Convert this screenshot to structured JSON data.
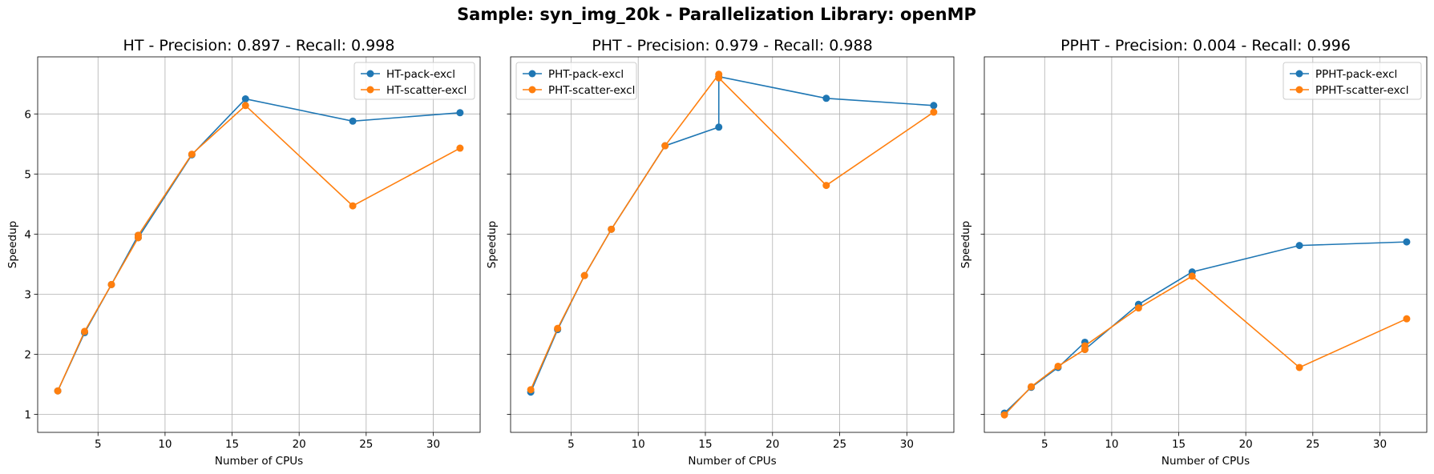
{
  "suptitle": "Sample: syn_img_20k - Parallelization Library: openMP",
  "colors": {
    "pack": "#1f77b4",
    "scatter": "#ff7f0e",
    "grid": "#b0b0b0"
  },
  "chart_data": [
    {
      "type": "line",
      "title": "HT - Precision: 0.897 - Recall: 0.998",
      "xlabel": "Number of CPUs",
      "ylabel": "Speedup",
      "xlim": [
        0.5,
        33.5
      ],
      "ylim": [
        0.7,
        6.95
      ],
      "xticks": [
        5,
        10,
        15,
        20,
        25,
        30
      ],
      "yticks": [
        1,
        2,
        3,
        4,
        5,
        6
      ],
      "show_ytick_labels": true,
      "grid": true,
      "legend": "top-right",
      "series": [
        {
          "name": "HT-pack-excl",
          "color": "pack",
          "x": [
            2,
            4,
            6,
            8,
            8,
            12,
            16,
            24,
            32
          ],
          "y": [
            1.39,
            2.36,
            3.16,
            3.98,
            3.94,
            5.32,
            6.25,
            5.88,
            6.02
          ]
        },
        {
          "name": "HT-scatter-excl",
          "color": "scatter",
          "x": [
            2,
            4,
            6,
            8,
            8,
            12,
            16,
            24,
            32
          ],
          "y": [
            1.39,
            2.38,
            3.16,
            3.94,
            3.98,
            5.33,
            6.14,
            4.47,
            5.43
          ]
        }
      ]
    },
    {
      "type": "line",
      "title": "PHT - Precision: 0.979 - Recall: 0.988",
      "xlabel": "Number of CPUs",
      "ylabel": "Speedup",
      "xlim": [
        0.5,
        33.5
      ],
      "ylim": [
        0.7,
        6.95
      ],
      "xticks": [
        5,
        10,
        15,
        20,
        25,
        30
      ],
      "yticks": [
        1,
        2,
        3,
        4,
        5,
        6
      ],
      "show_ytick_labels": false,
      "grid": true,
      "legend": "top-left",
      "series": [
        {
          "name": "PHT-pack-excl",
          "color": "pack",
          "x": [
            2,
            4,
            6,
            8,
            12,
            16,
            16,
            24,
            32
          ],
          "y": [
            1.37,
            2.41,
            3.31,
            4.08,
            5.47,
            5.78,
            6.62,
            6.26,
            6.14
          ]
        },
        {
          "name": "PHT-scatter-excl",
          "color": "scatter",
          "x": [
            2,
            4,
            6,
            8,
            12,
            16,
            16,
            24,
            32
          ],
          "y": [
            1.41,
            2.43,
            3.31,
            4.08,
            5.47,
            6.66,
            6.6,
            4.81,
            6.03
          ]
        }
      ]
    },
    {
      "type": "line",
      "title": "PPHT - Precision: 0.004 - Recall: 0.996",
      "xlabel": "Number of CPUs",
      "ylabel": "Speedup",
      "xlim": [
        0.5,
        33.5
      ],
      "ylim": [
        0.7,
        6.95
      ],
      "xticks": [
        5,
        10,
        15,
        20,
        25,
        30
      ],
      "yticks": [
        1,
        2,
        3,
        4,
        5,
        6
      ],
      "show_ytick_labels": false,
      "grid": true,
      "legend": "top-right",
      "series": [
        {
          "name": "PPHT-pack-excl",
          "color": "pack",
          "x": [
            2,
            4,
            6,
            8,
            8,
            12,
            16,
            24,
            32
          ],
          "y": [
            1.02,
            1.45,
            1.78,
            2.2,
            2.08,
            2.83,
            3.37,
            3.81,
            3.87
          ]
        },
        {
          "name": "PPHT-scatter-excl",
          "color": "scatter",
          "x": [
            2,
            4,
            6,
            8,
            8,
            12,
            16,
            24,
            32
          ],
          "y": [
            0.99,
            1.46,
            1.8,
            2.08,
            2.14,
            2.77,
            3.3,
            1.78,
            2.59
          ]
        }
      ]
    }
  ]
}
